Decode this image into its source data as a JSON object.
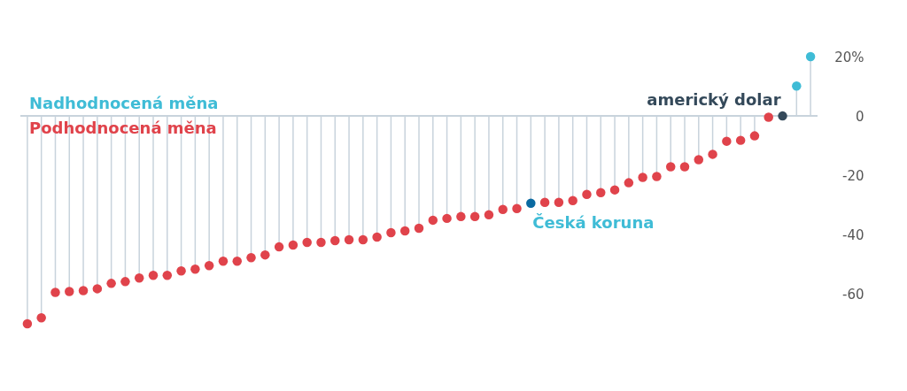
{
  "chart_data": {
    "type": "lollipop",
    "categories": [
      null,
      null,
      null,
      null,
      null,
      null,
      null,
      null,
      null,
      null,
      null,
      null,
      null,
      null,
      null,
      null,
      null,
      null,
      null,
      null,
      null,
      null,
      null,
      null,
      null,
      null,
      null,
      null,
      null,
      null,
      null,
      null,
      null,
      null,
      null,
      null,
      null,
      null,
      null,
      null,
      null,
      null,
      null,
      null,
      null,
      null,
      null,
      null,
      null,
      null,
      null,
      null,
      null,
      null,
      null,
      null,
      null
    ],
    "series": [
      {
        "name": "Nadhodnocená měna",
        "color": "#3fbcd6",
        "values": [
          null,
          null,
          null,
          null,
          null,
          null,
          null,
          null,
          null,
          null,
          null,
          null,
          null,
          null,
          null,
          null,
          null,
          null,
          null,
          null,
          null,
          null,
          null,
          null,
          null,
          null,
          null,
          null,
          null,
          null,
          null,
          null,
          null,
          null,
          null,
          null,
          null,
          null,
          null,
          null,
          null,
          null,
          null,
          null,
          null,
          null,
          null,
          null,
          null,
          null,
          null,
          null,
          null,
          null,
          null,
          10.1,
          20
        ]
      },
      {
        "name": "Podhodnocená měna",
        "color": "#e0434b",
        "colors": [
          "#e0434b",
          "#e0434b",
          "#e0434b",
          "#e0434b",
          "#e0434b",
          "#e0434b",
          "#e0434b",
          "#e0434b",
          "#e0434b",
          "#e0434b",
          "#e0434b",
          "#e0434b",
          "#e0434b",
          "#e0434b",
          "#e0434b",
          "#e0434b",
          "#e0434b",
          "#e0434b",
          "#e0434b",
          "#e0434b",
          "#e0434b",
          "#e0434b",
          "#e0434b",
          "#e0434b",
          "#e0434b",
          "#e0434b",
          "#e0434b",
          "#e0434b",
          "#e0434b",
          "#e0434b",
          "#e0434b",
          "#e0434b",
          "#e0434b",
          "#e0434b",
          "#e0434b",
          "#e0434b",
          "#0a6aa1",
          "#e0434b",
          "#e0434b",
          "#e0434b",
          "#e0434b",
          "#e0434b",
          "#e0434b",
          "#e0434b",
          "#e0434b",
          "#e0434b",
          "#e0434b",
          "#e0434b",
          "#e0434b",
          "#e0434b",
          "#e0434b",
          "#e0434b",
          "#e0434b",
          "#e0434b",
          "#34495a",
          null,
          null
        ],
        "values": [
          -70,
          -68,
          -59.4,
          -59.1,
          -58.8,
          -58.2,
          -56.4,
          -55.8,
          -54.6,
          -53.7,
          -53.7,
          -52.2,
          -51.6,
          -50.4,
          -48.9,
          -48.9,
          -47.7,
          -46.8,
          -44.1,
          -43.5,
          -42.6,
          -42.6,
          -42,
          -41.7,
          -41.7,
          -40.8,
          -39.3,
          -38.7,
          -37.8,
          -35.1,
          -34.5,
          -33.9,
          -33.9,
          -33.3,
          -31.5,
          -31.2,
          -29.4,
          -29.1,
          -29.1,
          -28.5,
          -26.4,
          -25.8,
          -24.9,
          -22.5,
          -20.7,
          -20.4,
          -17.1,
          -17.1,
          -14.7,
          -12.9,
          -8.5,
          -8.2,
          -6.7,
          -0.4,
          0,
          null,
          null
        ]
      }
    ],
    "ylim": [
      -70,
      20
    ],
    "yticks": [
      {
        "value": 20,
        "label": "20%"
      },
      0,
      -20,
      -40,
      -60
    ],
    "annotations": [
      "Česká koruna",
      "americký dolar"
    ],
    "ref_lines": [
      {
        "axis": "y",
        "value": 0,
        "color": "#c8d3dc"
      }
    ]
  }
}
